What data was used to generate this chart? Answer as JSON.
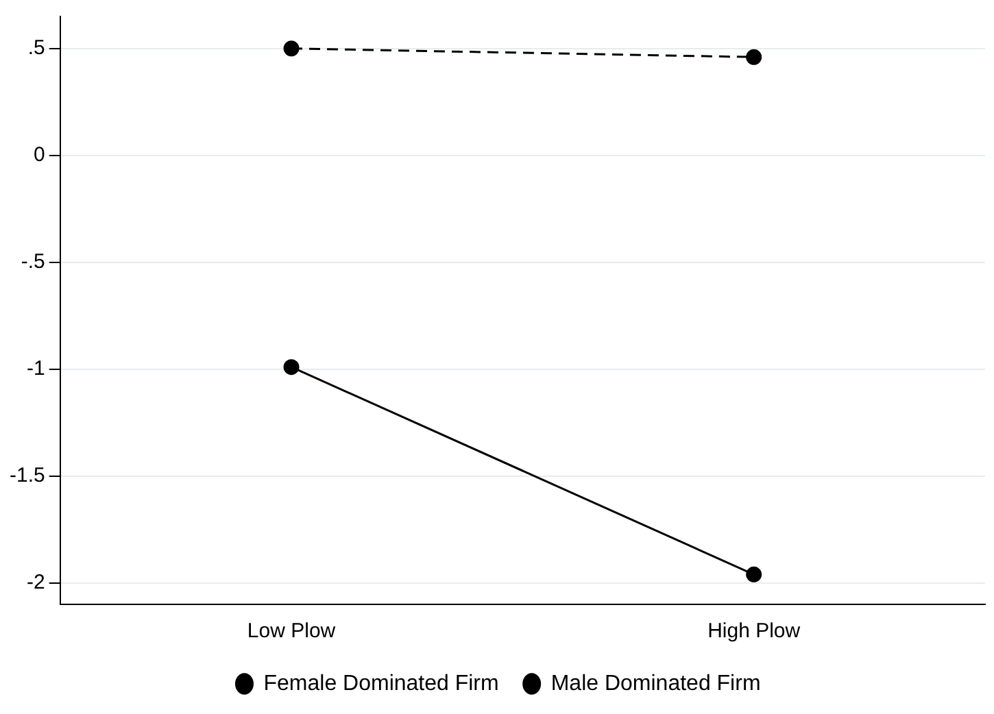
{
  "chart_data": {
    "type": "line",
    "categories": [
      "Low Plow",
      "High Plow"
    ],
    "series": [
      {
        "name": "Female Dominated Firm",
        "color": "#000000",
        "values": [
          -0.99,
          -1.96
        ],
        "line_style": "solid"
      },
      {
        "name": "Male Dominated Firm",
        "color": "#000000",
        "values": [
          0.5,
          0.46
        ],
        "line_style": "dashed"
      }
    ],
    "ylim": [
      -2.1,
      0.65
    ],
    "yticks": [
      {
        "value": 0.5,
        "label": ".5"
      },
      0,
      {
        "value": -0.5,
        "label": "-.5"
      },
      -1,
      {
        "value": -1.5,
        "label": "-1.5"
      },
      -2
    ],
    "grid": "y",
    "legend": "bottom",
    "marker": "circle"
  }
}
